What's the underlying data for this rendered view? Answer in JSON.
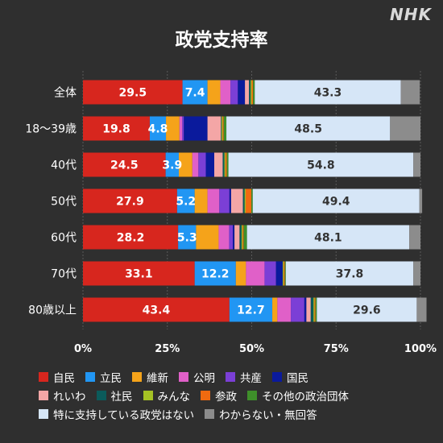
{
  "logo": "NHK",
  "chart_data": {
    "type": "bar",
    "orientation": "horizontal",
    "stacked": true,
    "title": "政党支持率",
    "categories": [
      "全体",
      "18～39歳",
      "40代",
      "50代",
      "60代",
      "70代",
      "80歳以上"
    ],
    "xlim": [
      0,
      100
    ],
    "xticks": [
      "0%",
      "25%",
      "50%",
      "75%",
      "100%"
    ],
    "legend_position": "bottom",
    "series": [
      {
        "name": "自民",
        "color": "#d7261e",
        "values": [
          29.5,
          19.8,
          24.5,
          27.9,
          28.2,
          33.1,
          43.4
        ],
        "labels": [
          "29.5",
          "19.8",
          "24.5",
          "27.9",
          "28.2",
          "33.1",
          "43.4"
        ]
      },
      {
        "name": "立民",
        "color": "#2196f3",
        "values": [
          7.4,
          4.8,
          3.9,
          5.2,
          5.3,
          12.2,
          12.7
        ],
        "labels": [
          "7.4",
          "4.8",
          "3.9",
          "5.2",
          "5.3",
          "12.2",
          "12.7"
        ]
      },
      {
        "name": "維新",
        "color": "#f5a31a",
        "values": [
          3.8,
          4.0,
          4.0,
          3.8,
          6.7,
          3.0,
          1.5
        ],
        "labels": [
          "",
          "",
          "",
          "",
          "",
          "",
          ""
        ]
      },
      {
        "name": "公明",
        "color": "#e060c8",
        "values": [
          3.0,
          0.8,
          1.8,
          3.5,
          3.1,
          5.5,
          4.0
        ],
        "labels": [
          "",
          "",
          "",
          "",
          "",
          "",
          ""
        ]
      },
      {
        "name": "共産",
        "color": "#7b3fd6",
        "values": [
          2.2,
          0.5,
          2.2,
          3.0,
          1.1,
          3.4,
          4.0
        ],
        "labels": [
          "",
          "",
          "",
          "",
          "",
          "",
          ""
        ]
      },
      {
        "name": "国民",
        "color": "#0a1a9c",
        "values": [
          2.1,
          7.0,
          2.5,
          0.5,
          0.5,
          2.0,
          0.6
        ],
        "labels": [
          "",
          "",
          "",
          "",
          "",
          "",
          ""
        ]
      },
      {
        "name": "れいわ",
        "color": "#f4a6a6",
        "values": [
          1.2,
          4.0,
          2.5,
          3.5,
          1.5,
          0.0,
          1.3
        ],
        "labels": [
          "",
          "",
          "",
          "",
          "",
          "",
          ""
        ]
      },
      {
        "name": "社民",
        "color": "#0b5b5b",
        "values": [
          0.5,
          0.2,
          0.5,
          0.5,
          0.6,
          0.0,
          0.8
        ],
        "labels": [
          "",
          "",
          "",
          "",
          "",
          "",
          ""
        ]
      },
      {
        "name": "みんな",
        "color": "#a5c224",
        "values": [
          0.3,
          0.3,
          0.3,
          0.3,
          0.3,
          0.3,
          0.3
        ],
        "labels": [
          "",
          "",
          "",
          "",
          "",
          "",
          ""
        ]
      },
      {
        "name": "参政",
        "color": "#f06a10",
        "values": [
          0.4,
          0.3,
          0.4,
          1.7,
          0.3,
          0.3,
          0.3
        ],
        "labels": [
          "",
          "",
          "",
          "",
          "",
          "",
          ""
        ]
      },
      {
        "name": "その他の政治団体",
        "color": "#3e8f2a",
        "values": [
          0.5,
          0.8,
          0.5,
          0.4,
          1.0,
          0.3,
          0.4
        ],
        "labels": [
          "",
          "",
          "",
          "",
          "",
          "",
          ""
        ]
      },
      {
        "name": "特に支持している政党はない",
        "color": "#d6e6f7",
        "values": [
          43.3,
          48.5,
          54.8,
          49.4,
          48.1,
          37.8,
          29.6
        ],
        "labels": [
          "43.3",
          "48.5",
          "54.8",
          "49.4",
          "48.1",
          "37.8",
          "29.6"
        ]
      },
      {
        "name": "わからない・無回答",
        "color": "#8c8c8c",
        "values": [
          5.6,
          9.0,
          2.1,
          0.8,
          3.3,
          2.1,
          2.9
        ],
        "labels": [
          "",
          "",
          "",
          "",
          "",
          "",
          ""
        ]
      }
    ]
  }
}
